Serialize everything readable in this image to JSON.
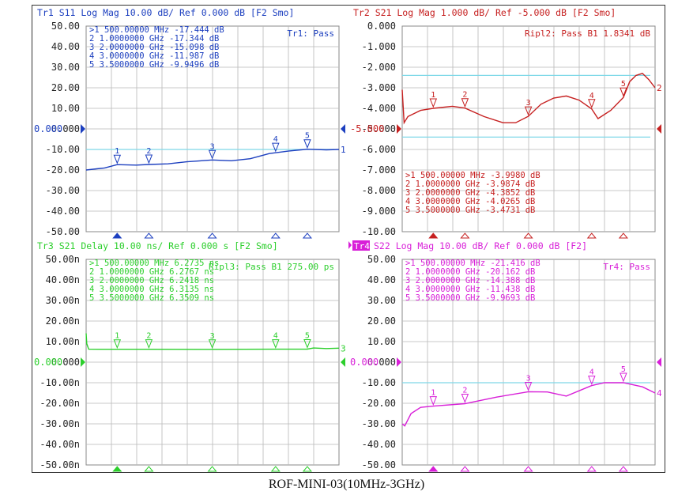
{
  "caption": "ROF-MINI-03(10MHz-3GHz)",
  "panels": [
    {
      "id": "tr1",
      "color": "#1c3fbf",
      "title": "Tr1 S11 Log Mag 10.00 dB/ Ref 0.000 dB [F2 Smo]",
      "status": "Tr1: Pass",
      "yticks": [
        "50.00",
        "40.00",
        "30.00",
        "20.00",
        "10.00",
        "0.000",
        "-10.00",
        "-20.00",
        "-30.00",
        "-40.00",
        "-50.00"
      ],
      "ref_value": "0.000",
      "limit_lines": [
        -10
      ],
      "trace_end_label": "1",
      "markers": [
        {
          "num": ">1",
          "freq": "500.00000",
          "unit": "MHz",
          "value": "-17.444",
          "vunit": "dB"
        },
        {
          "num": "2",
          "freq": "1.0000000",
          "unit": "GHz",
          "value": "-17.344",
          "vunit": "dB"
        },
        {
          "num": "3",
          "freq": "2.0000000",
          "unit": "GHz",
          "value": "-15.098",
          "vunit": "dB"
        },
        {
          "num": "4",
          "freq": "3.0000000",
          "unit": "GHz",
          "value": "-11.987",
          "vunit": "dB"
        },
        {
          "num": "5",
          "freq": "3.5000000",
          "unit": "GHz",
          "value": "-9.9496",
          "vunit": "dB"
        }
      ]
    },
    {
      "id": "tr2",
      "color": "#c62020",
      "title": "Tr2 S21 Log Mag 1.000 dB/ Ref -5.000 dB [F2 Smo]",
      "status": "Ripl2: Pass B1  1.8341  dB",
      "yticks": [
        "0.000",
        "-1.000",
        "-2.000",
        "-3.000",
        "-4.000",
        "-5.000",
        "-6.000",
        "-7.000",
        "-8.000",
        "-9.000",
        "-10.00"
      ],
      "ref_value": "-5.000",
      "limit_lines": [
        -2.4,
        -5.4
      ],
      "trace_end_label": "2",
      "markers": [
        {
          "num": ">1",
          "freq": "500.00000",
          "unit": "MHz",
          "value": "-3.9980",
          "vunit": "dB"
        },
        {
          "num": "2",
          "freq": "1.0000000",
          "unit": "GHz",
          "value": "-3.9874",
          "vunit": "dB"
        },
        {
          "num": "3",
          "freq": "2.0000000",
          "unit": "GHz",
          "value": "-4.3852",
          "vunit": "dB"
        },
        {
          "num": "4",
          "freq": "3.0000000",
          "unit": "GHz",
          "value": "-4.0265",
          "vunit": "dB"
        },
        {
          "num": "5",
          "freq": "3.5000000",
          "unit": "GHz",
          "value": "-3.4731",
          "vunit": "dB"
        }
      ]
    },
    {
      "id": "tr3",
      "color": "#2ccf2c",
      "title": "Tr3 S21 Delay 10.00 ns/ Ref 0.000 s [F2 Smo]",
      "status": "Ripl3: Pass B1  275.00 ps",
      "yticks": [
        "50.00n",
        "40.00n",
        "30.00n",
        "20.00n",
        "10.00n",
        "0.000",
        "-10.00n",
        "-20.00n",
        "-30.00n",
        "-40.00n",
        "-50.00n"
      ],
      "ref_value": "0.000",
      "limit_lines": [],
      "trace_end_label": "3",
      "markers": [
        {
          "num": ">1",
          "freq": "500.00000",
          "unit": "MHz",
          "value": "6.2735",
          "vunit": "ns"
        },
        {
          "num": "2",
          "freq": "1.0000000",
          "unit": "GHz",
          "value": "6.2767",
          "vunit": "ns"
        },
        {
          "num": "3",
          "freq": "2.0000000",
          "unit": "GHz",
          "value": "6.2418",
          "vunit": "ns"
        },
        {
          "num": "4",
          "freq": "3.0000000",
          "unit": "GHz",
          "value": "6.3135",
          "vunit": "ns"
        },
        {
          "num": "5",
          "freq": "3.5000000",
          "unit": "GHz",
          "value": "6.3509",
          "vunit": "ns"
        }
      ]
    },
    {
      "id": "tr4",
      "color": "#d81fd8",
      "title_badge": "Tr4",
      "title": "S22 Log Mag 10.00 dB/ Ref 0.000 dB [F2]",
      "status": "Tr4: Pass",
      "yticks": [
        "50.00",
        "40.00",
        "30.00",
        "20.00",
        "10.00",
        "0.000",
        "-10.00",
        "-20.00",
        "-30.00",
        "-40.00",
        "-50.00"
      ],
      "ref_value": "0.000",
      "limit_lines": [
        -10
      ],
      "trace_end_label": "4",
      "markers": [
        {
          "num": ">1",
          "freq": "500.00000",
          "unit": "MHz",
          "value": "-21.416",
          "vunit": "dB"
        },
        {
          "num": "2",
          "freq": "1.0000000",
          "unit": "GHz",
          "value": "-20.162",
          "vunit": "dB"
        },
        {
          "num": "3",
          "freq": "2.0000000",
          "unit": "GHz",
          "value": "-14.388",
          "vunit": "dB"
        },
        {
          "num": "4",
          "freq": "3.0000000",
          "unit": "GHz",
          "value": "-11.438",
          "vunit": "dB"
        },
        {
          "num": "5",
          "freq": "3.5000000",
          "unit": "GHz",
          "value": "-9.9693",
          "vunit": "dB"
        }
      ]
    }
  ],
  "chart_data": [
    {
      "type": "line",
      "title": "Tr1 S11 Log Mag 10.00 dB/ Ref 0.000 dB [F2 Smo]",
      "ylim": [
        -50,
        50
      ],
      "xlim_ghz": [
        0.01,
        4.0
      ],
      "series": [
        {
          "x": [
            0.01,
            0.3,
            0.5,
            0.8,
            1.0,
            1.3,
            1.6,
            2.0,
            2.3,
            2.6,
            2.9,
            3.2,
            3.5,
            3.8,
            4.0
          ],
          "values": [
            -20,
            -19,
            -17.4,
            -17.6,
            -17.3,
            -17,
            -16,
            -15.1,
            -15.5,
            -14.5,
            -12,
            -10.8,
            -9.9,
            -10.2,
            -10
          ]
        }
      ],
      "marker_x": [
        0.5,
        1.0,
        2.0,
        3.0,
        3.5
      ]
    },
    {
      "type": "line",
      "title": "Tr2 S21 Log Mag 1.000 dB/ Ref -5.000 dB [F2 Smo]",
      "ylim": [
        -10,
        0
      ],
      "xlim_ghz": [
        0.01,
        4.0
      ],
      "series": [
        {
          "x": [
            0.01,
            0.04,
            0.1,
            0.3,
            0.5,
            0.8,
            1.0,
            1.3,
            1.6,
            1.8,
            2.0,
            2.2,
            2.4,
            2.6,
            2.8,
            3.0,
            3.1,
            3.3,
            3.5,
            3.6,
            3.7,
            3.8,
            3.9,
            4.0
          ],
          "values": [
            -3.1,
            -4.7,
            -4.4,
            -4.1,
            -4.0,
            -3.9,
            -3.99,
            -4.4,
            -4.7,
            -4.7,
            -4.39,
            -3.8,
            -3.5,
            -3.4,
            -3.6,
            -4.03,
            -4.5,
            -4.1,
            -3.47,
            -2.7,
            -2.4,
            -2.3,
            -2.6,
            -3.0
          ]
        }
      ],
      "marker_x": [
        0.5,
        1.0,
        2.0,
        3.0,
        3.5
      ]
    },
    {
      "type": "line",
      "title": "Tr3 S21 Delay 10.00 ns/ Ref 0.000 s [F2 Smo]",
      "ylim": [
        -50,
        50
      ],
      "xlim_ghz": [
        0.01,
        4.0
      ],
      "series": [
        {
          "x": [
            0.01,
            0.02,
            0.05,
            0.5,
            1.0,
            2.0,
            3.0,
            3.5,
            3.6,
            3.8,
            4.0
          ],
          "values": [
            14,
            9,
            6.3,
            6.27,
            6.28,
            6.24,
            6.31,
            6.35,
            6.9,
            6.6,
            6.8
          ]
        }
      ],
      "marker_x": [
        0.5,
        1.0,
        2.0,
        3.0,
        3.5
      ]
    },
    {
      "type": "line",
      "title": "S22 Log Mag 10.00 dB/ Ref 0.000 dB [F2]",
      "ylim": [
        -50,
        50
      ],
      "xlim_ghz": [
        0.01,
        4.0
      ],
      "series": [
        {
          "x": [
            0.01,
            0.05,
            0.15,
            0.3,
            0.5,
            1.0,
            1.5,
            2.0,
            2.3,
            2.6,
            3.0,
            3.2,
            3.5,
            3.8,
            4.0
          ],
          "values": [
            -30,
            -31,
            -25,
            -22,
            -21.4,
            -20.2,
            -17,
            -14.4,
            -14.5,
            -16.5,
            -11.4,
            -10,
            -10,
            -12,
            -15
          ]
        }
      ],
      "marker_x": [
        0.5,
        1.0,
        2.0,
        3.0,
        3.5
      ]
    }
  ]
}
